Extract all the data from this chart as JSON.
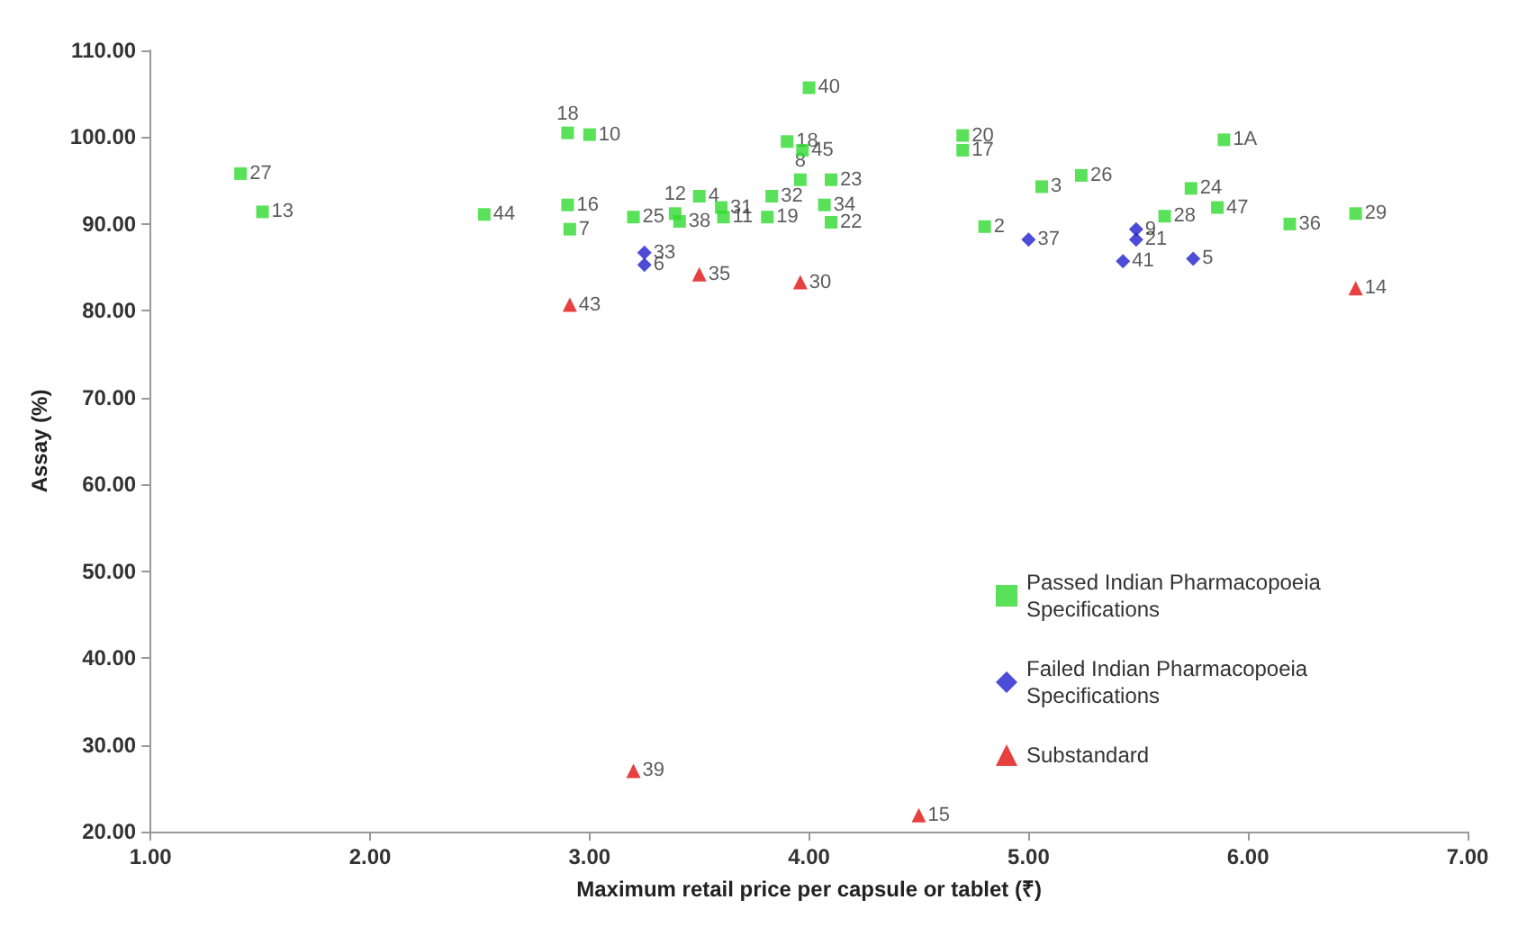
{
  "chart_data": {
    "type": "scatter",
    "xlabel": "Maximum retail price per capsule or tablet (₹)",
    "ylabel": "Assay (%)",
    "xlim": [
      1,
      7
    ],
    "xticks": [
      {
        "value": 1,
        "label": "1.00"
      },
      {
        "value": 2,
        "label": "2.00"
      },
      {
        "value": 3,
        "label": "3.00"
      },
      {
        "value": 4,
        "label": "4.00"
      },
      {
        "value": 5,
        "label": "5.00"
      },
      {
        "value": 6,
        "label": "6.00"
      },
      {
        "value": 7,
        "label": "7.00"
      }
    ],
    "ylim": [
      20,
      110
    ],
    "yticks": [
      {
        "value": 20,
        "label": "20.00"
      },
      {
        "value": 30,
        "label": "30.00"
      },
      {
        "value": 40,
        "label": "40.00"
      },
      {
        "value": 50,
        "label": "50.00"
      },
      {
        "value": 60,
        "label": "60.00"
      },
      {
        "value": 70,
        "label": "70.00"
      },
      {
        "value": 80,
        "label": "80.00"
      },
      {
        "value": 90,
        "label": "90.00"
      },
      {
        "value": 100,
        "label": "100.00"
      },
      {
        "value": 110,
        "label": "110.00"
      }
    ],
    "grid": false,
    "legend": "bottom right",
    "series": [
      {
        "name": "Passed Indian Pharmacopoeia Specifications",
        "color": "#2fd92f",
        "marker": "square",
        "x": [
          4.0,
          2.9,
          3.0,
          3.9,
          3.97,
          3.96,
          4.1,
          2.9,
          2.52,
          2.91,
          3.2,
          3.5,
          3.39,
          3.41,
          3.6,
          3.61,
          3.83,
          3.81,
          4.07,
          4.1,
          4.7,
          4.7,
          5.06,
          5.24,
          4.8,
          5.89,
          5.74,
          5.86,
          5.62,
          6.19,
          6.49,
          1.41,
          1.51
        ],
        "values": [
          105.7,
          100.5,
          100.3,
          99.5,
          98.5,
          95.1,
          95.1,
          92.2,
          91.1,
          89.4,
          90.8,
          93.2,
          91.2,
          90.3,
          91.9,
          90.8,
          93.2,
          90.8,
          92.2,
          90.2,
          100.2,
          98.5,
          94.3,
          95.6,
          89.7,
          99.7,
          94.1,
          91.9,
          90.9,
          90.0,
          91.2,
          95.8,
          91.4
        ]
      },
      {
        "name": "Failed Indian Pharmacopoeia Specifications",
        "color": "#1f1fcc",
        "marker": "diamond",
        "x": [
          3.25,
          3.25,
          5.0,
          5.49,
          5.49,
          5.43,
          5.75
        ],
        "values": [
          86.7,
          85.3,
          88.2,
          89.4,
          88.2,
          85.7,
          86.0
        ]
      },
      {
        "name": "Substandard",
        "color": "#e01010",
        "marker": "triangle",
        "x": [
          3.5,
          3.96,
          2.91,
          6.49,
          3.2,
          4.5
        ],
        "values": [
          84.2,
          83.3,
          80.7,
          82.6,
          27.0,
          21.9
        ]
      }
    ],
    "annotations": [
      {
        "text": "40",
        "x": 4.0,
        "y": 105.7
      },
      {
        "text": "18",
        "x": 2.9,
        "y": 100.5
      },
      {
        "text": "10",
        "x": 3.0,
        "y": 100.3
      },
      {
        "text": "18",
        "x": 3.9,
        "y": 99.5
      },
      {
        "text": "45",
        "x": 3.97,
        "y": 98.5
      },
      {
        "text": "8",
        "x": 3.96,
        "y": 95.1
      },
      {
        "text": "23",
        "x": 4.1,
        "y": 95.1
      },
      {
        "text": "16",
        "x": 2.9,
        "y": 92.2
      },
      {
        "text": "44",
        "x": 2.52,
        "y": 91.1
      },
      {
        "text": "7",
        "x": 2.91,
        "y": 89.4
      },
      {
        "text": "25",
        "x": 3.2,
        "y": 90.8
      },
      {
        "text": "4",
        "x": 3.5,
        "y": 93.2
      },
      {
        "text": "12",
        "x": 3.39,
        "y": 91.2
      },
      {
        "text": "38",
        "x": 3.41,
        "y": 90.3
      },
      {
        "text": "31",
        "x": 3.6,
        "y": 91.9
      },
      {
        "text": "11",
        "x": 3.61,
        "y": 90.8
      },
      {
        "text": "32",
        "x": 3.83,
        "y": 93.2
      },
      {
        "text": "19",
        "x": 3.81,
        "y": 90.8
      },
      {
        "text": "34",
        "x": 4.07,
        "y": 92.2
      },
      {
        "text": "22",
        "x": 4.1,
        "y": 90.2
      },
      {
        "text": "20",
        "x": 4.7,
        "y": 100.2
      },
      {
        "text": "17",
        "x": 4.7,
        "y": 98.5
      },
      {
        "text": "3",
        "x": 5.06,
        "y": 94.3
      },
      {
        "text": "26",
        "x": 5.24,
        "y": 95.6
      },
      {
        "text": "2",
        "x": 4.8,
        "y": 89.7
      },
      {
        "text": "1A",
        "x": 5.89,
        "y": 99.7
      },
      {
        "text": "24",
        "x": 5.74,
        "y": 94.1
      },
      {
        "text": "47",
        "x": 5.86,
        "y": 91.9
      },
      {
        "text": "28",
        "x": 5.62,
        "y": 90.9
      },
      {
        "text": "36",
        "x": 6.19,
        "y": 90.0
      },
      {
        "text": "29",
        "x": 6.49,
        "y": 91.2
      },
      {
        "text": "27",
        "x": 1.41,
        "y": 95.8
      },
      {
        "text": "13",
        "x": 1.51,
        "y": 91.4
      },
      {
        "text": "33",
        "x": 3.25,
        "y": 86.7
      },
      {
        "text": "6",
        "x": 3.25,
        "y": 85.3
      },
      {
        "text": "37",
        "x": 5.0,
        "y": 88.2
      },
      {
        "text": "9",
        "x": 5.49,
        "y": 89.4
      },
      {
        "text": "21",
        "x": 5.49,
        "y": 88.2
      },
      {
        "text": "41",
        "x": 5.43,
        "y": 85.7
      },
      {
        "text": "5",
        "x": 5.75,
        "y": 86.0
      },
      {
        "text": "35",
        "x": 3.5,
        "y": 84.2
      },
      {
        "text": "30",
        "x": 3.96,
        "y": 83.3
      },
      {
        "text": "43",
        "x": 2.91,
        "y": 80.7
      },
      {
        "text": "14",
        "x": 6.49,
        "y": 82.6
      },
      {
        "text": "39",
        "x": 3.2,
        "y": 27.0
      },
      {
        "text": "15",
        "x": 4.5,
        "y": 21.9
      }
    ]
  }
}
